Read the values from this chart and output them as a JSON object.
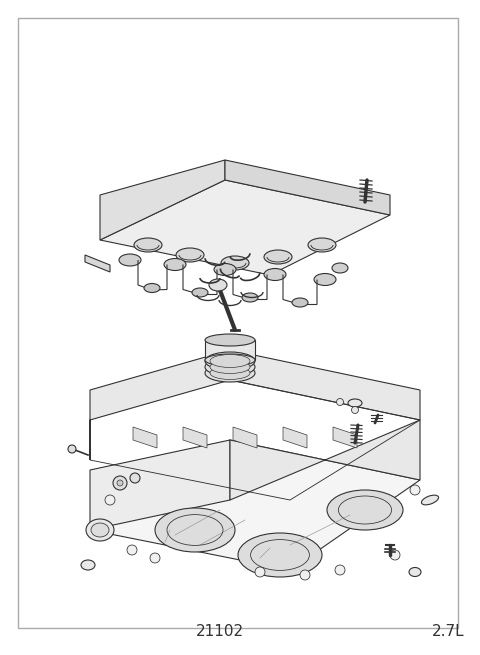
{
  "title": "21102",
  "subtitle": "2.7L",
  "background_color": "#ffffff",
  "border_color": "#aaaaaa",
  "line_color": "#333333",
  "light_line_color": "#999999",
  "title_fontsize": 11,
  "subtitle_fontsize": 11,
  "border_lw": 1.0,
  "part_lw": 0.8,
  "fig_width": 4.8,
  "fig_height": 6.55,
  "dpi": 100
}
